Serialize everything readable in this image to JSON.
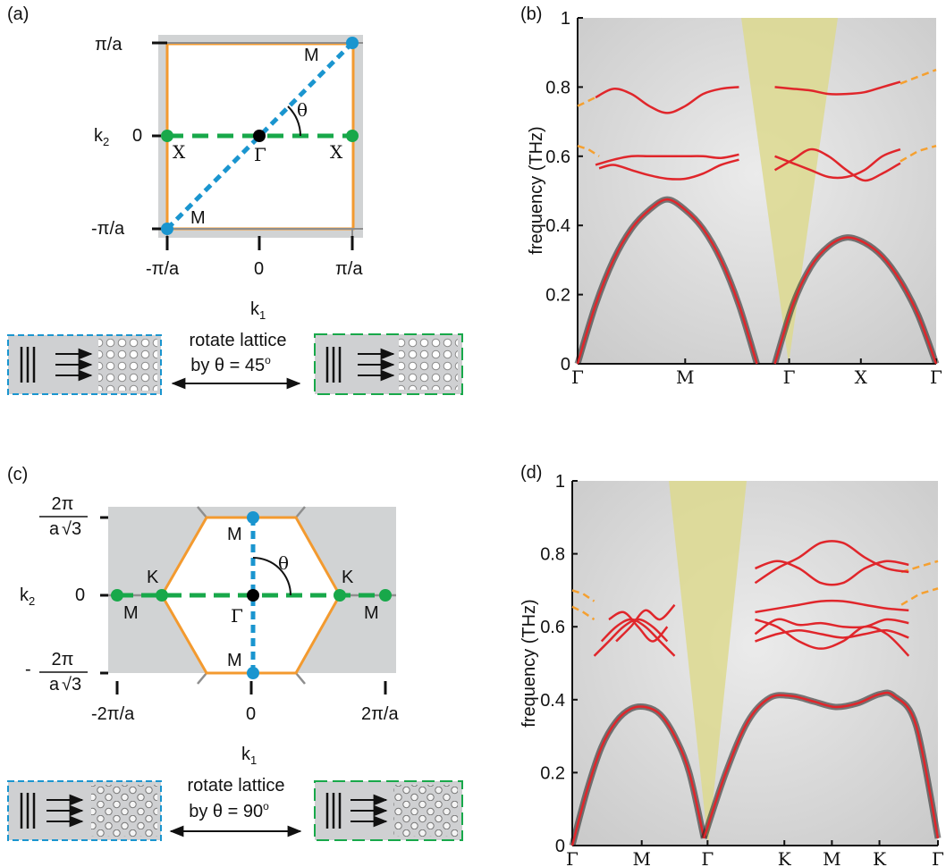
{
  "panels": {
    "a": {
      "label": "(a)",
      "axes": {
        "k2_label": "k",
        "k2_sub": "2",
        "k1_label": "k",
        "k1_sub": "1",
        "y_ticks": [
          "π/a",
          "0",
          "-π/a"
        ],
        "x_ticks": [
          "-π/a",
          "0",
          "π/a"
        ]
      },
      "points": {
        "M_top": "M",
        "M_bottom": "M",
        "X_left": "X",
        "X_right": "X",
        "Gamma": "Γ",
        "theta": "θ"
      },
      "rotation": {
        "line1": "rotate lattice",
        "line2": "by θ = 45",
        "deg": "o"
      }
    },
    "b": {
      "label": "(b)"
    },
    "c": {
      "label": "(c)",
      "axes": {
        "k2_label": "k",
        "k2_sub": "2",
        "k1_label": "k",
        "k1_sub": "1",
        "y_top_num": "2π",
        "y_top_den_a": "a",
        "y_top_den_root": "√3",
        "y_mid": "0",
        "y_bot_neg": "-",
        "y_bot_num": "2π",
        "y_bot_den_a": "a",
        "y_bot_den_root": "√3",
        "x_ticks": [
          "-2π/a",
          "0",
          "2π/a"
        ]
      },
      "points": {
        "M_top": "M",
        "M_bottom": "M",
        "K_left": "K",
        "K_right": "K",
        "M_left": "M",
        "M_right": "M",
        "Gamma": "Γ",
        "theta": "θ"
      },
      "rotation": {
        "line1": "rotate lattice",
        "line2": "by θ = 90",
        "deg": "o"
      }
    },
    "d": {
      "label": "(d)"
    }
  },
  "colors": {
    "band_red": "#e0262b",
    "dashed_orange": "#f5a030",
    "brillouin_orange": "#f39a2f",
    "path_blue": "#1a95cf",
    "path_green": "#18a84a",
    "gamma_black": "#000000",
    "light_cone": "#ddd98f",
    "panel_gray": "#d1d3d4"
  },
  "chart_data": [
    {
      "panel": "b",
      "type": "line",
      "ylabel": "frequency (THz)",
      "ylim": [
        0,
        1
      ],
      "y_ticks": [
        "0",
        "0.2",
        "0.4",
        "0.6",
        "0.8",
        "1"
      ],
      "x_ticks": [
        "Γ",
        "M",
        "Γ",
        "X",
        "Γ"
      ],
      "series": [
        {
          "x": [
            0,
            0.05,
            0.1,
            0.15,
            0.2,
            0.25,
            0.3,
            0.35,
            0.4,
            0.45,
            0.5
          ],
          "y": [
            0,
            0.17,
            0.3,
            0.39,
            0.445,
            0.475,
            0.445,
            0.39,
            0.3,
            0.17,
            0
          ]
        },
        {
          "x": [
            0.55,
            0.6,
            0.65,
            0.7,
            0.75,
            0.8,
            0.85,
            0.9,
            0.95,
            1.0
          ],
          "y": [
            0,
            0.17,
            0.28,
            0.34,
            0.365,
            0.35,
            0.31,
            0.24,
            0.14,
            0
          ]
        },
        {
          "x": [
            0.05,
            0.1,
            0.15,
            0.2,
            0.25,
            0.3,
            0.35,
            0.4,
            0.45
          ],
          "y": [
            0.575,
            0.59,
            0.6,
            0.6,
            0.6,
            0.6,
            0.6,
            0.595,
            0.605
          ]
        },
        {
          "x": [
            0.06,
            0.1,
            0.15,
            0.2,
            0.25,
            0.3,
            0.35,
            0.4,
            0.45
          ],
          "y": [
            0.565,
            0.575,
            0.56,
            0.545,
            0.535,
            0.535,
            0.55,
            0.575,
            0.59
          ]
        },
        {
          "x": [
            0.05,
            0.1,
            0.15,
            0.2,
            0.25,
            0.3,
            0.35,
            0.4,
            0.45
          ],
          "y": [
            0.77,
            0.795,
            0.78,
            0.745,
            0.725,
            0.745,
            0.78,
            0.795,
            0.8
          ]
        },
        {
          "x": [
            0.55,
            0.6,
            0.65,
            0.7,
            0.75,
            0.8,
            0.85,
            0.9
          ],
          "y": [
            0.56,
            0.59,
            0.62,
            0.6,
            0.56,
            0.53,
            0.55,
            0.58
          ]
        },
        {
          "x": [
            0.55,
            0.6,
            0.65,
            0.7,
            0.75,
            0.8,
            0.85,
            0.9
          ],
          "y": [
            0.6,
            0.58,
            0.56,
            0.54,
            0.54,
            0.56,
            0.6,
            0.62
          ]
        },
        {
          "x": [
            0.55,
            0.6,
            0.65,
            0.7,
            0.75,
            0.8,
            0.85,
            0.9
          ],
          "y": [
            0.8,
            0.795,
            0.79,
            0.78,
            0.78,
            0.785,
            0.8,
            0.815
          ]
        }
      ],
      "dashed_orange": [
        {
          "x": [
            0,
            0.03,
            0.06
          ],
          "y": [
            0.745,
            0.76,
            0.775
          ]
        },
        {
          "x": [
            0,
            0.03,
            0.06
          ],
          "y": [
            0.63,
            0.62,
            0.6
          ]
        },
        {
          "x": [
            0.9,
            0.95,
            1.0
          ],
          "y": [
            0.81,
            0.83,
            0.85
          ]
        },
        {
          "x": [
            0.9,
            0.95,
            1.0
          ],
          "y": [
            0.585,
            0.615,
            0.63
          ]
        }
      ]
    },
    {
      "panel": "d",
      "type": "line",
      "ylabel": "frequency (THz)",
      "ylim": [
        0,
        1
      ],
      "y_ticks": [
        "0",
        "0.2",
        "0.4",
        "0.6",
        "0.8",
        "1"
      ],
      "x_ticks": [
        "Γ",
        "M",
        "Γ",
        "K",
        "M",
        "K",
        "Γ"
      ],
      "series": [
        {
          "x": [
            0,
            0.04,
            0.08,
            0.12,
            0.16,
            0.2,
            0.24,
            0.28,
            0.32,
            0.36
          ],
          "y": [
            0,
            0.15,
            0.27,
            0.34,
            0.375,
            0.38,
            0.36,
            0.3,
            0.2,
            0.02
          ]
        },
        {
          "x": [
            0.36,
            0.42,
            0.48,
            0.54,
            0.6,
            0.66,
            0.72,
            0.78,
            0.84,
            0.88,
            0.94,
            1.0
          ],
          "y": [
            0.02,
            0.2,
            0.34,
            0.405,
            0.41,
            0.395,
            0.38,
            0.39,
            0.415,
            0.41,
            0.33,
            0.02
          ]
        },
        {
          "x": [
            0.06,
            0.1,
            0.14,
            0.18,
            0.22,
            0.26
          ],
          "y": [
            0.52,
            0.56,
            0.6,
            0.62,
            0.6,
            0.56
          ]
        },
        {
          "x": [
            0.08,
            0.12,
            0.16,
            0.2,
            0.24,
            0.28
          ],
          "y": [
            0.56,
            0.6,
            0.62,
            0.6,
            0.56,
            0.52
          ]
        },
        {
          "x": [
            0.1,
            0.14,
            0.18,
            0.22,
            0.26
          ],
          "y": [
            0.62,
            0.64,
            0.6,
            0.56,
            0.6
          ]
        },
        {
          "x": [
            0.12,
            0.16,
            0.2,
            0.24,
            0.28
          ],
          "y": [
            0.56,
            0.6,
            0.645,
            0.62,
            0.66
          ]
        },
        {
          "x": [
            0.5,
            0.56,
            0.62,
            0.68,
            0.74,
            0.8,
            0.86,
            0.92
          ],
          "y": [
            0.72,
            0.76,
            0.79,
            0.83,
            0.83,
            0.79,
            0.76,
            0.75
          ]
        },
        {
          "x": [
            0.5,
            0.56,
            0.62,
            0.68,
            0.74,
            0.8,
            0.86,
            0.92
          ],
          "y": [
            0.76,
            0.78,
            0.76,
            0.72,
            0.72,
            0.76,
            0.78,
            0.77
          ]
        },
        {
          "x": [
            0.5,
            0.56,
            0.62,
            0.68,
            0.74,
            0.8,
            0.86,
            0.92
          ],
          "y": [
            0.64,
            0.65,
            0.66,
            0.67,
            0.67,
            0.66,
            0.65,
            0.645
          ]
        },
        {
          "x": [
            0.5,
            0.56,
            0.62,
            0.68,
            0.74,
            0.8,
            0.86,
            0.92
          ],
          "y": [
            0.58,
            0.62,
            0.605,
            0.61,
            0.6,
            0.6,
            0.62,
            0.61
          ]
        },
        {
          "x": [
            0.5,
            0.56,
            0.62,
            0.68,
            0.74,
            0.8,
            0.86,
            0.92
          ],
          "y": [
            0.56,
            0.58,
            0.59,
            0.58,
            0.57,
            0.58,
            0.59,
            0.57
          ]
        },
        {
          "x": [
            0.5,
            0.56,
            0.62,
            0.68,
            0.74,
            0.8,
            0.86,
            0.92
          ],
          "y": [
            0.62,
            0.6,
            0.56,
            0.54,
            0.56,
            0.6,
            0.58,
            0.52
          ]
        }
      ],
      "dashed_orange": [
        {
          "x": [
            0,
            0.03,
            0.06
          ],
          "y": [
            0.7,
            0.69,
            0.67
          ]
        },
        {
          "x": [
            0,
            0.03,
            0.06
          ],
          "y": [
            0.655,
            0.64,
            0.62
          ]
        },
        {
          "x": [
            0.9,
            0.95,
            1.0
          ],
          "y": [
            0.75,
            0.765,
            0.78
          ]
        },
        {
          "x": [
            0.9,
            0.95,
            1.0
          ],
          "y": [
            0.66,
            0.69,
            0.705
          ]
        }
      ]
    }
  ]
}
